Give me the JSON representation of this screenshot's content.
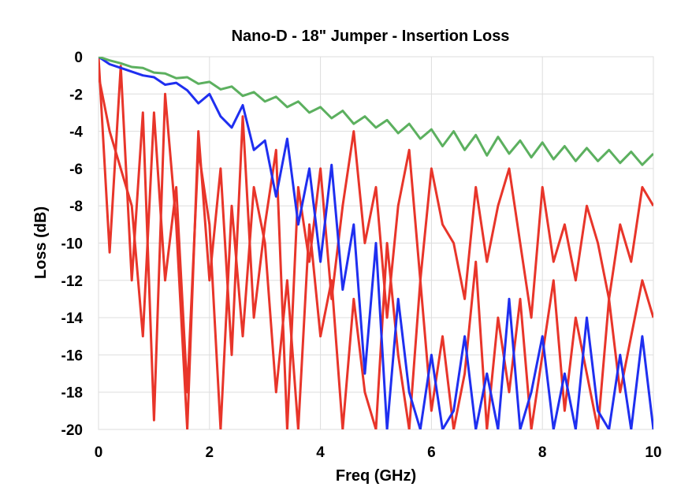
{
  "chart_data": {
    "type": "line",
    "title": "Nano-D - 18\" Jumper - Insertion Loss",
    "xlabel": "Freq (GHz)",
    "ylabel": "Loss (dB)",
    "xlim": [
      0,
      10
    ],
    "ylim": [
      -20,
      0
    ],
    "xticks": [
      0,
      2,
      4,
      6,
      8,
      10
    ],
    "yticks": [
      0,
      -2,
      -4,
      -6,
      -8,
      -10,
      -12,
      -14,
      -16,
      -18,
      -20
    ],
    "grid": true,
    "legend": "none",
    "x": [
      0,
      0.2,
      0.4,
      0.6,
      0.8,
      1,
      1.2,
      1.4,
      1.6,
      1.8,
      2,
      2.2,
      2.4,
      2.6,
      2.8,
      3,
      3.2,
      3.4,
      3.6,
      3.8,
      4,
      4.2,
      4.4,
      4.6,
      4.8,
      5,
      5.2,
      5.4,
      5.6,
      5.8,
      6,
      6.2,
      6.4,
      6.6,
      6.8,
      7,
      7.2,
      7.4,
      7.6,
      7.8,
      8,
      8.2,
      8.4,
      8.6,
      8.8,
      9,
      9.2,
      9.4,
      9.6,
      9.8,
      10
    ],
    "series": [
      {
        "color": "#e8352a",
        "values": [
          -1,
          -4,
          -6,
          -8,
          -15,
          -3,
          -12,
          -7,
          -18,
          -5,
          -9,
          -20,
          -8,
          -15,
          -7,
          -10,
          -18,
          -12,
          -20,
          -9,
          -15,
          -12,
          -20,
          -13,
          -18,
          -20,
          -10,
          -16,
          -20,
          -12,
          -19,
          -15,
          -20,
          -17,
          -11,
          -20,
          -14,
          -18,
          -13,
          -20,
          -16,
          -12,
          -19,
          -14,
          -17,
          -20,
          -13,
          -18,
          -15,
          -12,
          -14
        ]
      },
      {
        "color": "#e8352a",
        "values": [
          0,
          -10.5,
          -0.5,
          -12,
          -3,
          -19.5,
          -2,
          -9,
          -20,
          -4,
          -12,
          -6,
          -16,
          -3.2,
          -14,
          -9,
          -5,
          -20,
          -7,
          -11,
          -6,
          -13,
          -8,
          -4,
          -10,
          -7,
          -14,
          -8,
          -5,
          -12,
          -6,
          -9,
          -10,
          -13,
          -7,
          -11,
          -8,
          -6,
          -10,
          -14,
          -7,
          -11,
          -9,
          -12,
          -8,
          -10,
          -13,
          -9,
          -11,
          -7,
          -8
        ]
      },
      {
        "color": "#1f2ff0",
        "values": [
          0,
          -0.4,
          -0.6,
          -0.8,
          -1.0,
          -1.1,
          -1.5,
          -1.4,
          -1.8,
          -2.5,
          -2.0,
          -3.2,
          -3.8,
          -2.6,
          -5.0,
          -4.5,
          -7.5,
          -4.4,
          -9.0,
          -6.0,
          -11,
          -5.8,
          -12.5,
          -9,
          -17,
          -10,
          -20,
          -13,
          -18,
          -20,
          -16,
          -20,
          -19,
          -15,
          -20,
          -17,
          -20,
          -13,
          -20,
          -18,
          -15,
          -20,
          -17,
          -20,
          -14,
          -19,
          -20,
          -16,
          -20,
          -15,
          -20
        ]
      },
      {
        "color": "#5cb05f",
        "values": [
          0,
          -0.2,
          -0.35,
          -0.55,
          -0.6,
          -0.85,
          -0.9,
          -1.15,
          -1.1,
          -1.45,
          -1.35,
          -1.75,
          -1.6,
          -2.1,
          -1.9,
          -2.4,
          -2.15,
          -2.7,
          -2.4,
          -3.0,
          -2.7,
          -3.3,
          -2.9,
          -3.6,
          -3.2,
          -3.8,
          -3.4,
          -4.1,
          -3.6,
          -4.4,
          -3.9,
          -4.8,
          -4.0,
          -5.0,
          -4.2,
          -5.3,
          -4.3,
          -5.2,
          -4.5,
          -5.4,
          -4.6,
          -5.5,
          -4.8,
          -5.6,
          -4.9,
          -5.6,
          -5.0,
          -5.7,
          -5.1,
          -5.8,
          -5.2
        ]
      }
    ]
  }
}
